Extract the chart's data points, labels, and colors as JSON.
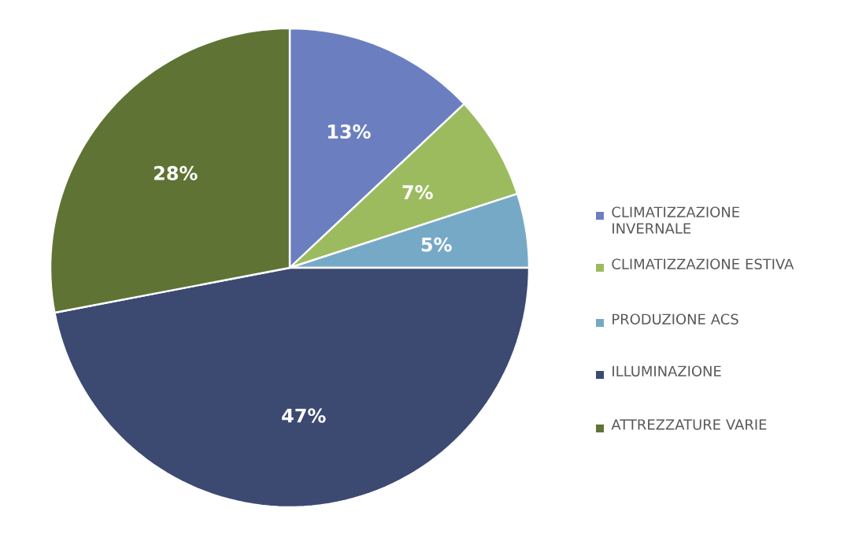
{
  "chart_data": {
    "type": "pie",
    "categories": [
      "CLIMATIZZAZIONE INVERNALE",
      "CLIMATIZZAZIONE ESTIVA",
      "PRODUZIONE ACS",
      "ILLUMINAZIONE",
      "ATTREZZATURE VARIE"
    ],
    "values": [
      13,
      7,
      5,
      47,
      28
    ],
    "colors": [
      "#6b7fc0",
      "#9cbb5f",
      "#76a9c6",
      "#3c4a72",
      "#5f7434"
    ],
    "value_labels": [
      "13%",
      "7%",
      "5%",
      "47%",
      "28%"
    ],
    "legend": "right"
  }
}
